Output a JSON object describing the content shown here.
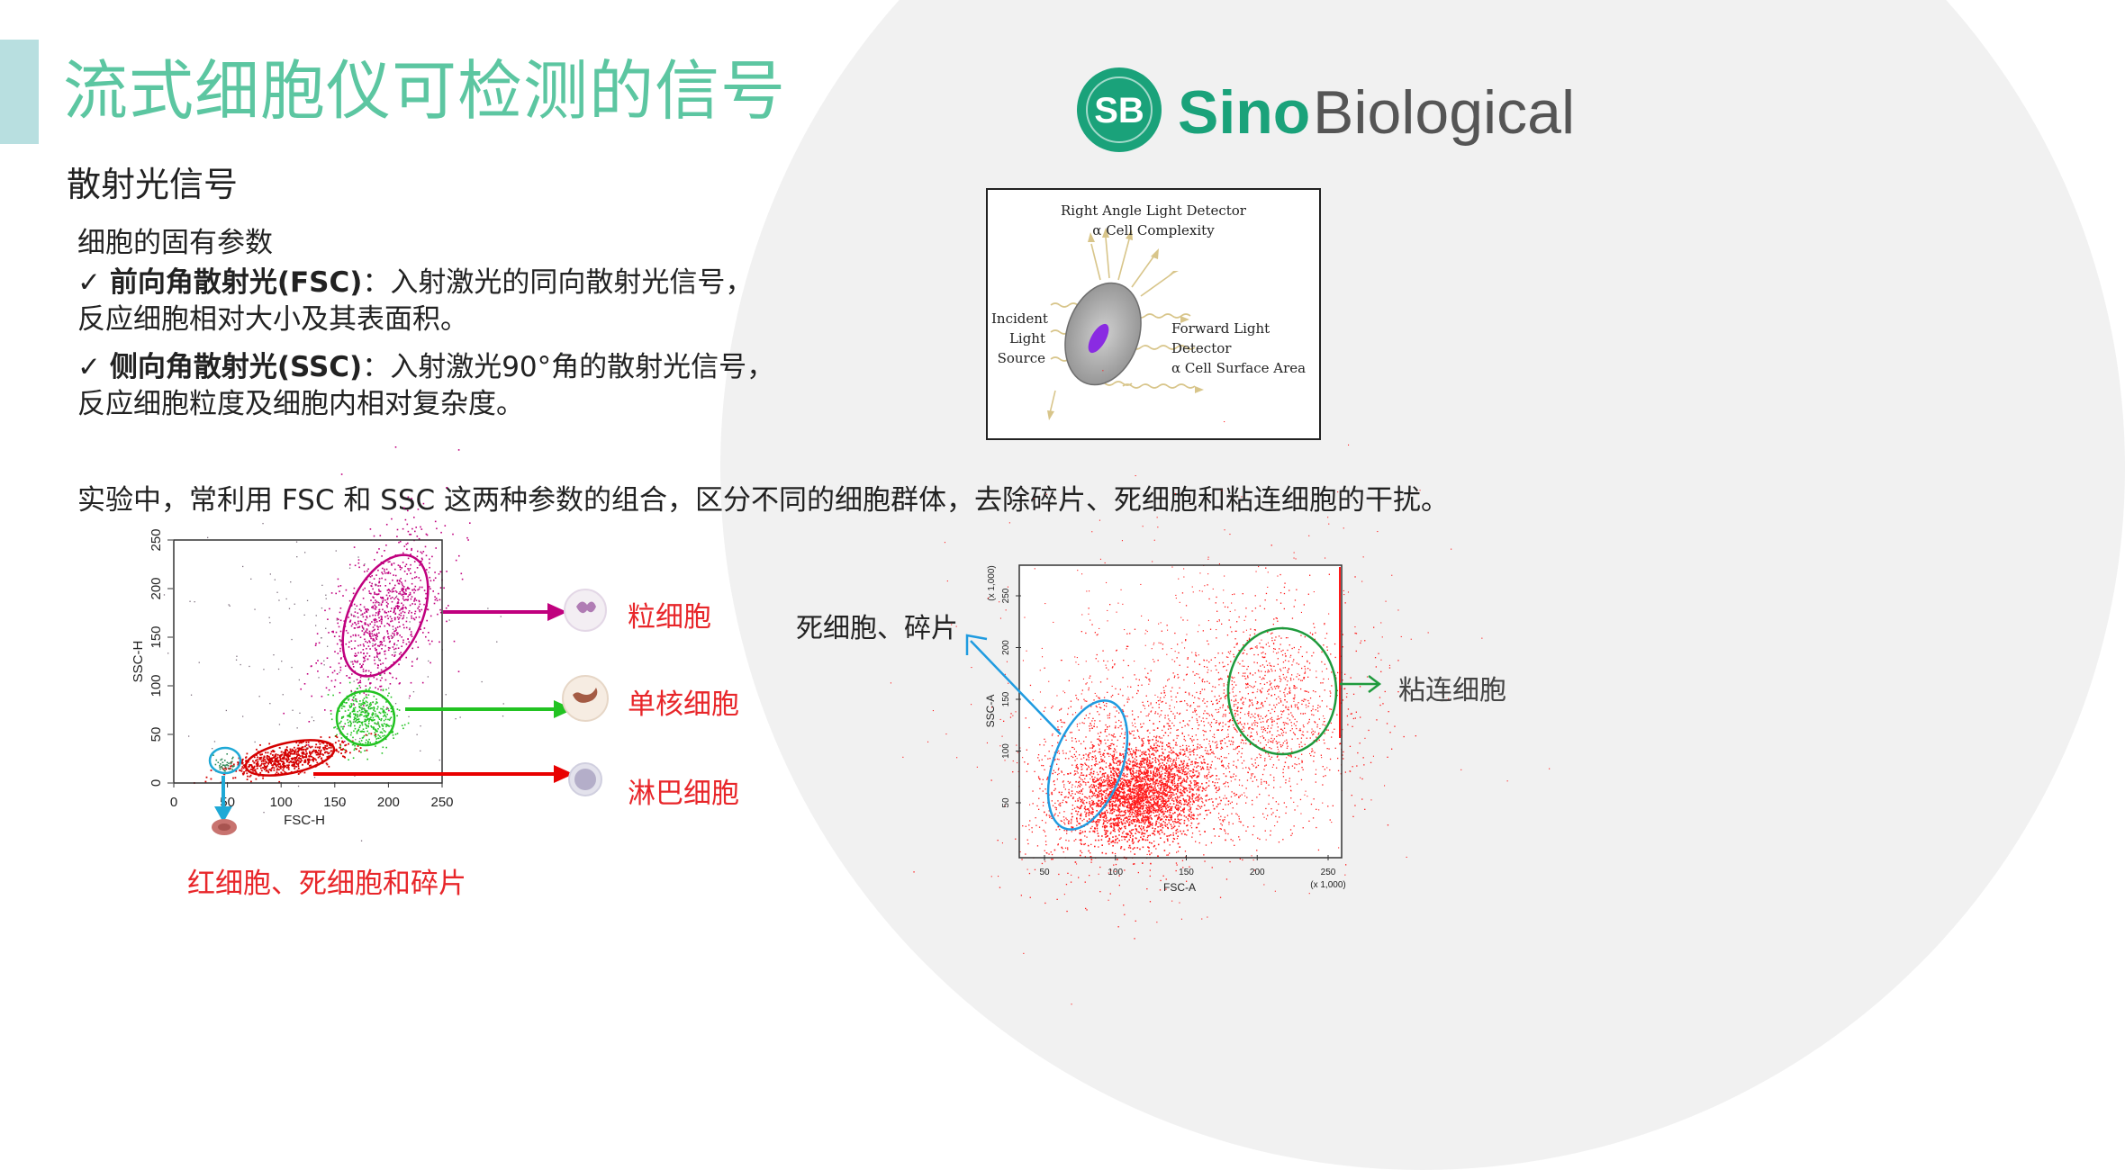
{
  "slide": {
    "title": "流式细胞仪可检测的信号",
    "subtitle": "散射光信号",
    "intro": "细胞的固有参数",
    "bullets": [
      {
        "check": "✓",
        "bold": "前向角散射光(FSC)",
        "rest": "：入射激光的同向散射光信号，",
        "line2": "反应细胞相对大小及其表面积。"
      },
      {
        "check": "✓",
        "bold": "侧向角散射光(SSC)",
        "rest": "：入射激光90°角的散射光信号，",
        "line2": "反应细胞粒度及细胞内相对复杂度。"
      }
    ],
    "summary": "实验中，常利用 FSC 和 SSC 这两种参数的组合，区分不同的细胞群体，去除碎片、死细胞和粘连细胞的干扰。"
  },
  "logo": {
    "badge": "SB",
    "word1": "Sino",
    "word2": "Biological",
    "color_green": "#1aa27a",
    "color_grey": "#555555"
  },
  "diagram": {
    "top_line1": "Right Angle Light Detector",
    "top_line2": "α Cell Complexity",
    "left_line1": "Incident",
    "left_line2": "Light",
    "left_line3": "Source",
    "right_line1": "Forward Light Detector",
    "right_line2": "α Cell Surface Area"
  },
  "plot_left": {
    "xlabel": "FSC-H",
    "ylabel": "SSC-H",
    "xticks": [
      "0",
      "50",
      "100",
      "150",
      "200",
      "250"
    ],
    "yticks": [
      "0",
      "50",
      "100",
      "150",
      "200",
      "250"
    ],
    "labels": {
      "granulocyte": "粒细胞",
      "monocyte": "单核细胞",
      "lymphocyte": "淋巴细胞",
      "rbc": "红细胞、死细胞和碎片"
    },
    "colors": {
      "granulocyte": "#c0007e",
      "monocyte": "#22c322",
      "lymphocyte": "#d40000",
      "rbc": "#1fa9d6"
    }
  },
  "plot_right": {
    "xlabel": "FSC-A",
    "ylabel": "SSC-A",
    "xunit": "(x 1,000)",
    "yunit": "(x 1,000)",
    "xticks": [
      "50",
      "100",
      "150",
      "200",
      "250"
    ],
    "yticks": [
      "50",
      "100",
      "150",
      "200",
      "250"
    ],
    "labels": {
      "dead": "死细胞、碎片",
      "adhered": "粘连细胞"
    },
    "colors": {
      "dead": "#1f9be0",
      "adhered": "#1e9a3c",
      "dots": "#ff1a1a"
    }
  }
}
